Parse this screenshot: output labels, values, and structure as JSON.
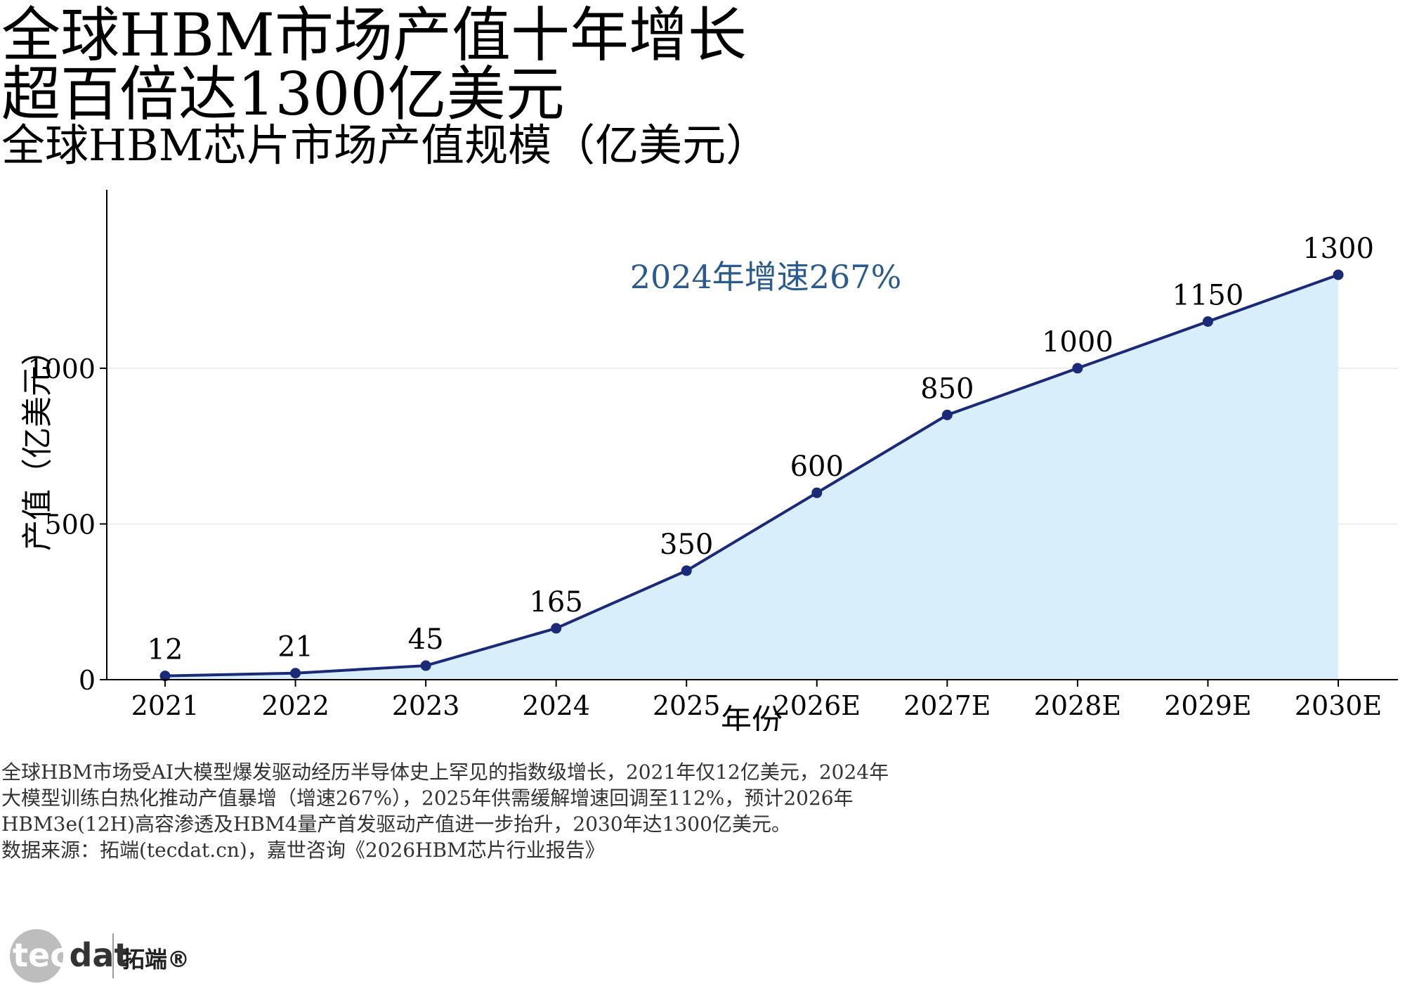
{
  "header": {
    "title_line1": "全球HBM市场产值十年增长",
    "title_line2": "超百倍达1300亿美元",
    "subtitle": "全球HBM芯片市场产值规模（亿美元）"
  },
  "annotation": "2024年增速267%",
  "note": {
    "lines": [
      "全球HBM市场受AI大模型爆发驱动经历半导体史上罕见的指数级增长，2021年仅12亿美元，2024年",
      "大模型训练白热化推动产值暴增（增速267%），2025年供需缓解增速回调至112%，预计2026年",
      "HBM3e(12H)高容渗透及HBM4量产首发驱动产值进一步抬升，2030年达1300亿美元。",
      "数据来源：拓端(tecdat.cn)，嘉世咨询《2026HBM芯片行业报告》"
    ]
  },
  "logo": {
    "word_a": "tec",
    "word_b": "dat",
    "cn": "拓端®"
  },
  "colors": {
    "line": "#1a2a78",
    "fill": "#d8eefb",
    "annotation": "#2b5a8c",
    "axis": "#000000",
    "grid": "#e8e8e8"
  },
  "chart_data": {
    "type": "area",
    "categories": [
      "2021",
      "2022",
      "2023",
      "2024",
      "2025",
      "2026E",
      "2027E",
      "2028E",
      "2029E",
      "2030E"
    ],
    "values": [
      12,
      21,
      45,
      165,
      350,
      600,
      850,
      1000,
      1150,
      1300
    ],
    "data_labels": [
      "12",
      "21",
      "45",
      "165",
      "350",
      "600",
      "850",
      "1000",
      "1150",
      "1300"
    ],
    "xlabel": "年份",
    "ylabel": "产值（亿美元）",
    "ylim": [
      0,
      1400
    ],
    "yticks": [
      0,
      500,
      1000
    ],
    "ytick_labels": [
      "0",
      "500",
      "1000"
    ],
    "grid": "horizontal"
  }
}
